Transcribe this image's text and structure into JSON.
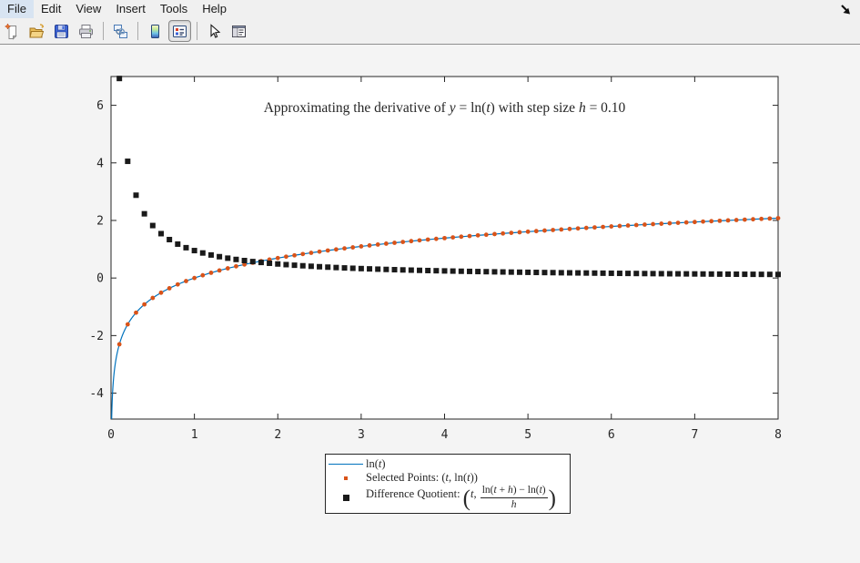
{
  "window": {
    "menubar": {
      "items": [
        "File",
        "Edit",
        "View",
        "Insert",
        "Tools",
        "Help"
      ]
    },
    "toolbar": {
      "icons": [
        "new-document-icon",
        "open-folder-icon",
        "save-icon",
        "print-icon",
        "link-icon",
        "colormap-icon",
        "legend-toggle-icon",
        "pointer-icon",
        "properties-panel-icon"
      ],
      "pressed_icon": "legend-toggle-icon"
    },
    "mouse_cursor": "arrow-se-icon"
  },
  "chart_data": {
    "type": "line",
    "title": "Approximating the derivative of y = ln(t) with step size h = 0.10",
    "title_segments": [
      {
        "text": "Approximating the derivative of "
      },
      {
        "text": "y",
        "italic": true
      },
      {
        "text": " = ln("
      },
      {
        "text": "t",
        "italic": true
      },
      {
        "text": ") with step size "
      },
      {
        "text": "h",
        "italic": true
      },
      {
        "text": " = 0.10"
      }
    ],
    "xlabel": "",
    "ylabel": "",
    "xlim": [
      0,
      8
    ],
    "ylim": [
      -4.9,
      7
    ],
    "xticks": [
      0,
      1,
      2,
      3,
      4,
      5,
      6,
      7,
      8
    ],
    "yticks": [
      -4,
      -2,
      0,
      2,
      4,
      6
    ],
    "grid": false,
    "legend_position": "below-center",
    "h_step": 0.1,
    "t_values": [
      0.1,
      0.2,
      0.3,
      0.4,
      0.5,
      0.6,
      0.7,
      0.8,
      0.9,
      1.0,
      1.1,
      1.2,
      1.3,
      1.4,
      1.5,
      1.6,
      1.7,
      1.8,
      1.9,
      2.0,
      2.1,
      2.2,
      2.3,
      2.4,
      2.5,
      2.6,
      2.7,
      2.8,
      2.9,
      3.0,
      3.1,
      3.2,
      3.3,
      3.4,
      3.5,
      3.6,
      3.7,
      3.8,
      3.9,
      4.0,
      4.1,
      4.2,
      4.3,
      4.4,
      4.5,
      4.6,
      4.7,
      4.8,
      4.9,
      5.0,
      5.1,
      5.2,
      5.3,
      5.4,
      5.5,
      5.6,
      5.7,
      5.8,
      5.9,
      6.0,
      6.1,
      6.2,
      6.3,
      6.4,
      6.5,
      6.6,
      6.7,
      6.8,
      6.9,
      7.0,
      7.1,
      7.2,
      7.3,
      7.4,
      7.5,
      7.6,
      7.7,
      7.8,
      7.9,
      8.0
    ],
    "series": [
      {
        "name": "ln(t)",
        "type": "line",
        "color": "#0072bd",
        "formula": "y = ln(t)",
        "x_domain": [
          0.0075,
          8
        ]
      },
      {
        "name": "Selected Points: (t, ln(t))",
        "type": "scatter",
        "marker": "dot",
        "color": "#d95319",
        "y": [
          -2.3026,
          -1.6094,
          -1.204,
          -0.9163,
          -0.6931,
          -0.5108,
          -0.3567,
          -0.2231,
          -0.1054,
          0.0,
          0.0953,
          0.1823,
          0.2624,
          0.3365,
          0.4055,
          0.47,
          0.5306,
          0.5878,
          0.6419,
          0.6931,
          0.7419,
          0.7885,
          0.8329,
          0.8755,
          0.9163,
          0.9555,
          0.9933,
          1.0296,
          1.0647,
          1.0986,
          1.1314,
          1.1632,
          1.1939,
          1.2238,
          1.2528,
          1.2809,
          1.3083,
          1.335,
          1.361,
          1.3863,
          1.411,
          1.4351,
          1.4586,
          1.4816,
          1.5041,
          1.5261,
          1.5476,
          1.5686,
          1.5892,
          1.6094,
          1.6292,
          1.6487,
          1.6677,
          1.6864,
          1.7047,
          1.7228,
          1.7405,
          1.7579,
          1.775,
          1.7918,
          1.8083,
          1.8245,
          1.8406,
          1.8563,
          1.8718,
          1.8871,
          1.9021,
          1.9169,
          1.9315,
          1.9459,
          1.9601,
          1.9741,
          1.9879,
          2.0015,
          2.0149,
          2.0281,
          2.0412,
          2.0541,
          2.0669,
          2.0794
        ]
      },
      {
        "name": "Difference Quotient: (t, (ln(t+h) - ln(t))/h)",
        "type": "scatter",
        "marker": "square",
        "color": "#1a1a1a",
        "y": [
          6.9315,
          4.0546,
          2.8768,
          2.2314,
          1.8232,
          1.5415,
          1.3353,
          1.1778,
          1.0536,
          0.9531,
          0.8701,
          0.8004,
          0.7411,
          0.6899,
          0.6454,
          0.6062,
          0.5716,
          0.5407,
          0.5129,
          0.4879,
          0.4652,
          0.4445,
          0.4256,
          0.4082,
          0.3922,
          0.3774,
          0.3637,
          0.3509,
          0.339,
          0.3279,
          0.3175,
          0.3077,
          0.2985,
          0.2899,
          0.2817,
          0.274,
          0.2667,
          0.2598,
          0.2532,
          0.2469,
          0.241,
          0.2353,
          0.2299,
          0.2247,
          0.2198,
          0.2151,
          0.2105,
          0.2062,
          0.202,
          0.198,
          0.1942,
          0.1905,
          0.1869,
          0.1835,
          0.1802,
          0.177,
          0.1739,
          0.1709,
          0.1681,
          0.1653,
          0.1626,
          0.16,
          0.1575,
          0.155,
          0.1527,
          0.1504,
          0.1482,
          0.146,
          0.1439,
          0.1419,
          0.1399,
          0.1379,
          0.1361,
          0.1342,
          0.1325,
          0.1307,
          0.129,
          0.1274,
          0.1258,
          0.1242
        ]
      }
    ],
    "legend": {
      "entries": [
        {
          "label": "ln(t)",
          "segments": [
            {
              "text": "ln("
            },
            {
              "text": "t",
              "italic": true
            },
            {
              "text": ")"
            }
          ]
        },
        {
          "label": "Selected Points: (t, ln(t))",
          "segments": [
            {
              "text": "Selected Points: ("
            },
            {
              "text": "t",
              "italic": true
            },
            {
              "text": ", ln("
            },
            {
              "text": "t",
              "italic": true
            },
            {
              "text": "))"
            }
          ]
        },
        {
          "label": "Difference Quotient: (t, (ln(t+h) - ln(t))/h)",
          "prefix": [
            {
              "text": "Difference Quotient: "
            }
          ],
          "paren_open": "(",
          "tuple": [
            {
              "text": "t",
              "italic": true
            },
            {
              "text": ","
            }
          ],
          "numerator": [
            {
              "text": "ln("
            },
            {
              "text": "t",
              "italic": true
            },
            {
              "text": " + "
            },
            {
              "text": "h",
              "italic": true
            },
            {
              "text": ") − ln("
            },
            {
              "text": "t",
              "italic": true
            },
            {
              "text": ")"
            }
          ],
          "denominator": [
            {
              "text": "h",
              "italic": true
            }
          ],
          "paren_close": ")"
        }
      ]
    },
    "colors": {
      "line": "#0072bd",
      "selected_points": "#d95319",
      "difference_quotient": "#1a1a1a"
    }
  }
}
